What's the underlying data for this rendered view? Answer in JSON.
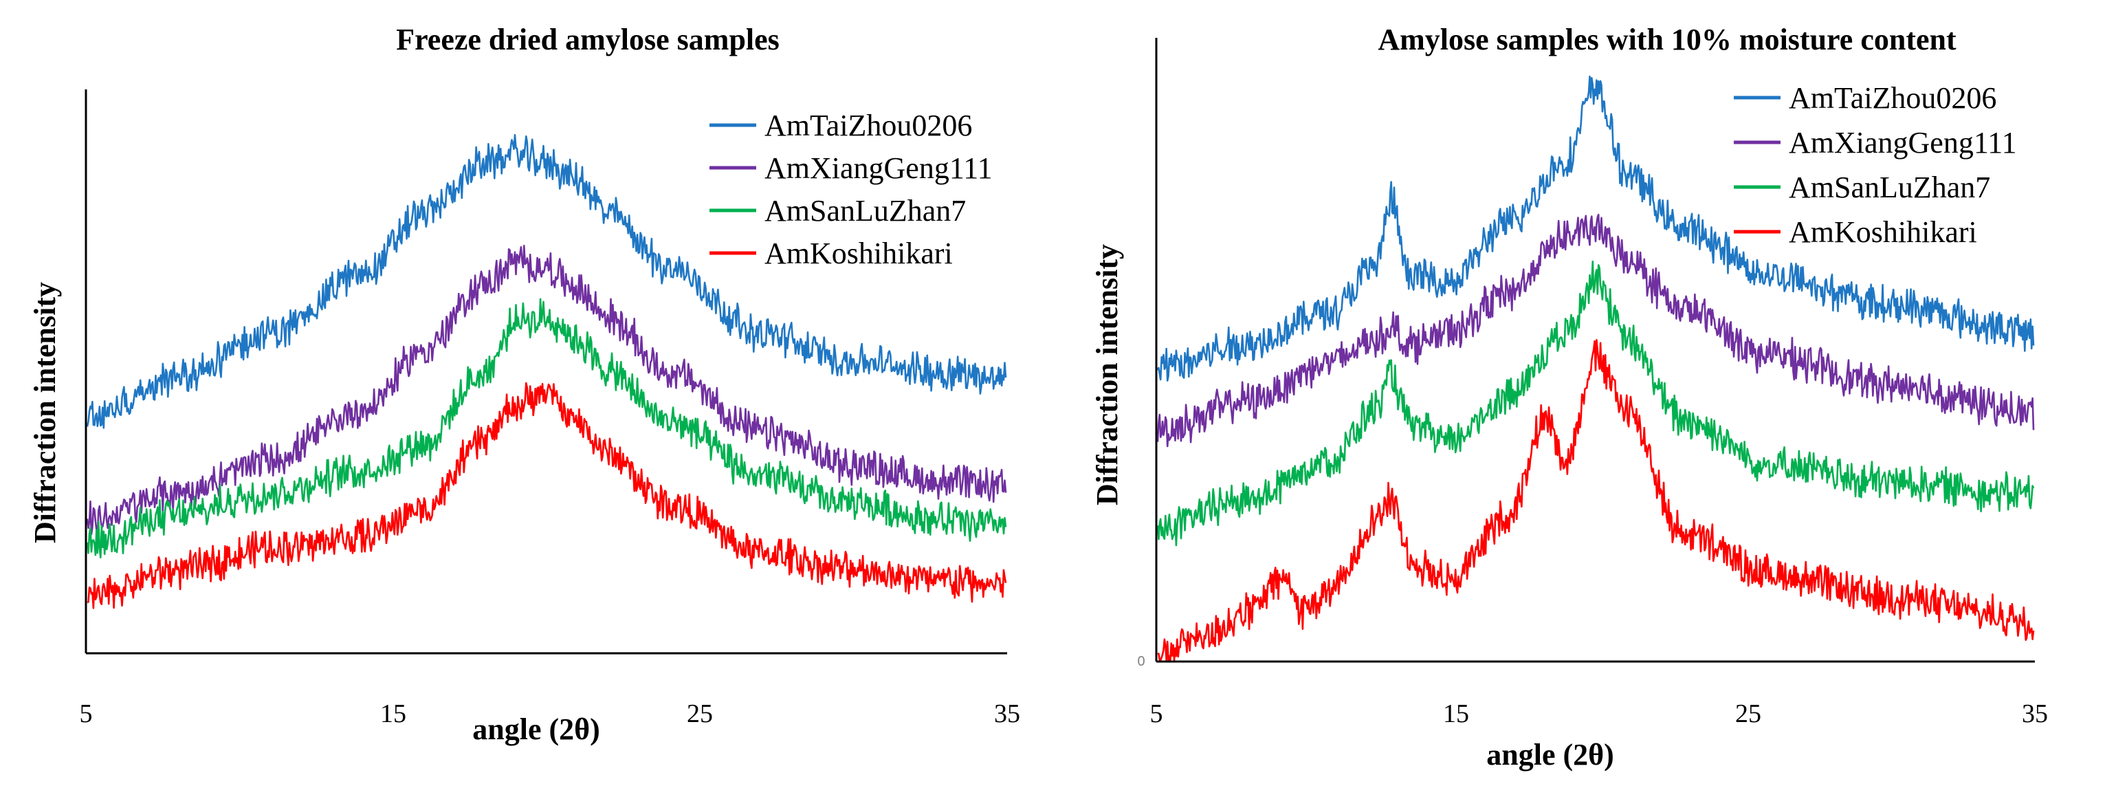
{
  "chart_data": [
    {
      "type": "line",
      "title": "Freeze dried amylose samples",
      "xlabel": "angle (2θ)",
      "ylabel": "Diffraction intensity",
      "xlim": [
        5,
        35
      ],
      "ylim": [
        0,
        100
      ],
      "xticks": [
        "5",
        "15",
        "25",
        "35"
      ],
      "yticks": [],
      "legend": "top-right",
      "series": [
        {
          "name": "AmTaiZhou0206",
          "color": "#1f77c4",
          "x": [
            5,
            8,
            11,
            14,
            16,
            18,
            19,
            20,
            21,
            22,
            24,
            27,
            30,
            33,
            35
          ],
          "values": [
            43,
            50,
            58,
            69,
            80,
            89,
            91,
            89,
            86,
            80,
            70,
            58,
            53,
            51,
            50
          ]
        },
        {
          "name": "AmXiangGeng111",
          "color": "#7030a0",
          "x": [
            5,
            8,
            11,
            14,
            16,
            18,
            19,
            20,
            21,
            22,
            24,
            27,
            30,
            33,
            35
          ],
          "values": [
            24,
            29,
            35,
            44,
            55,
            67,
            71,
            70,
            66,
            61,
            51,
            40,
            34,
            31,
            30
          ]
        },
        {
          "name": "AmSanLuZhan7",
          "color": "#00b050",
          "x": [
            5,
            8,
            11,
            14,
            16,
            18,
            19,
            20,
            21,
            22,
            24,
            27,
            30,
            33,
            35
          ],
          "values": [
            20,
            25,
            29,
            33,
            38,
            51,
            60,
            61,
            57,
            51,
            42,
            32,
            27,
            24,
            23
          ]
        },
        {
          "name": "AmKoshihikari",
          "color": "#ff0000",
          "x": [
            5,
            8,
            11,
            14,
            16,
            18,
            19,
            20,
            21,
            22,
            24,
            27,
            30,
            33,
            35
          ],
          "values": [
            10,
            15,
            19,
            21,
            26,
            39,
            45,
            47,
            42,
            36,
            27,
            18,
            15,
            13,
            12
          ]
        }
      ]
    },
    {
      "type": "line",
      "title": "Amylose samples with 10% moisture content",
      "xlabel": "angle (2θ)",
      "ylabel": "Diffraction intensity",
      "xlim": [
        5,
        35
      ],
      "ylim": [
        0,
        100
      ],
      "xticks": [
        "5",
        "15",
        "25",
        "35"
      ],
      "yticks": [
        "0"
      ],
      "legend": "top-right",
      "series": [
        {
          "name": "AmTaiZhou0206",
          "color": "#1f77c4",
          "x": [
            5,
            8,
            11,
            12.5,
            13,
            13.6,
            15,
            17,
            19,
            20,
            21,
            23,
            26,
            30,
            35
          ],
          "values": [
            51,
            55,
            61,
            69,
            80,
            67,
            66,
            76,
            87,
            100,
            85,
            75,
            67,
            62,
            57
          ]
        },
        {
          "name": "AmXiangGeng111",
          "color": "#7030a0",
          "x": [
            5,
            8,
            11,
            12.5,
            13,
            13.6,
            15,
            17,
            19,
            20,
            21,
            23,
            26,
            30,
            35
          ],
          "values": [
            40,
            45,
            52,
            56,
            58,
            55,
            57,
            64,
            74,
            75,
            70,
            61,
            53,
            48,
            43
          ]
        },
        {
          "name": "AmSanLuZhan7",
          "color": "#00b050",
          "x": [
            5,
            8,
            11,
            12.5,
            13,
            13.6,
            15,
            17,
            19,
            20,
            21,
            23,
            26,
            30,
            35
          ],
          "values": [
            23,
            28,
            35,
            44,
            50,
            41,
            38,
            46,
            57,
            67,
            56,
            42,
            34,
            31,
            29
          ]
        },
        {
          "name": "AmKoshihikari",
          "color": "#ff0000",
          "x": [
            5,
            6.5,
            8,
            9.3,
            10,
            11,
            12.5,
            13,
            13.7,
            15,
            17,
            18.3,
            19,
            20,
            21,
            23,
            26,
            30,
            35
          ],
          "values": [
            1,
            4,
            8,
            14,
            9,
            12,
            25,
            28,
            17,
            14,
            25,
            42,
            35,
            53,
            44,
            22,
            15,
            11,
            7
          ]
        }
      ]
    }
  ]
}
